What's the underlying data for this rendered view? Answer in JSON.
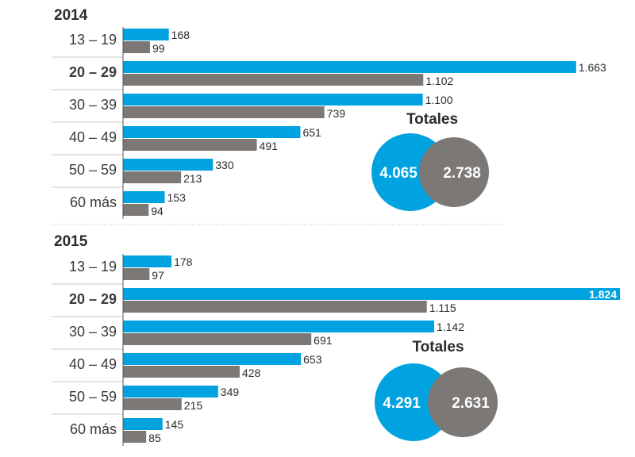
{
  "colors": {
    "series1": "#00a3e0",
    "series2": "#7b7875",
    "row_line": "#c8c8c8",
    "axis": "#555555",
    "divider": "#bdbdbd"
  },
  "chart_data": [
    {
      "type": "bar",
      "orientation": "horizontal",
      "title": "2014",
      "categories": [
        "13 – 19",
        "20 – 29",
        "30 – 39",
        "40 – 49",
        "50 – 59",
        "60 más"
      ],
      "value_labels": {
        "s1": [
          "168",
          "1.663",
          "1.100",
          "651",
          "330",
          "153"
        ],
        "s2": [
          "99",
          "1.102",
          "739",
          "491",
          "213",
          "94"
        ]
      },
      "series": [
        {
          "values": [
            168,
            1663,
            1100,
            651,
            330,
            153
          ]
        },
        {
          "values": [
            99,
            1102,
            739,
            491,
            213,
            94
          ]
        }
      ],
      "xlim": [
        0,
        1850
      ],
      "totals": {
        "title": "Totales",
        "values": [
          "4.065",
          "2.738"
        ]
      }
    },
    {
      "type": "bar",
      "orientation": "horizontal",
      "title": "2015",
      "categories": [
        "13 – 19",
        "20 – 29",
        "30 – 39",
        "40 – 49",
        "50 – 59",
        "60 más"
      ],
      "value_labels": {
        "s1": [
          "178",
          "1.824",
          "1.142",
          "653",
          "349",
          "145"
        ],
        "s2": [
          "97",
          "1.115",
          "691",
          "428",
          "215",
          "85"
        ]
      },
      "series": [
        {
          "values": [
            178,
            1824,
            1142,
            653,
            349,
            145
          ]
        },
        {
          "values": [
            97,
            1115,
            691,
            428,
            215,
            85
          ]
        }
      ],
      "xlim": [
        0,
        1850
      ],
      "totals": {
        "title": "Totales",
        "values": [
          "4.291",
          "2.631"
        ]
      }
    }
  ]
}
